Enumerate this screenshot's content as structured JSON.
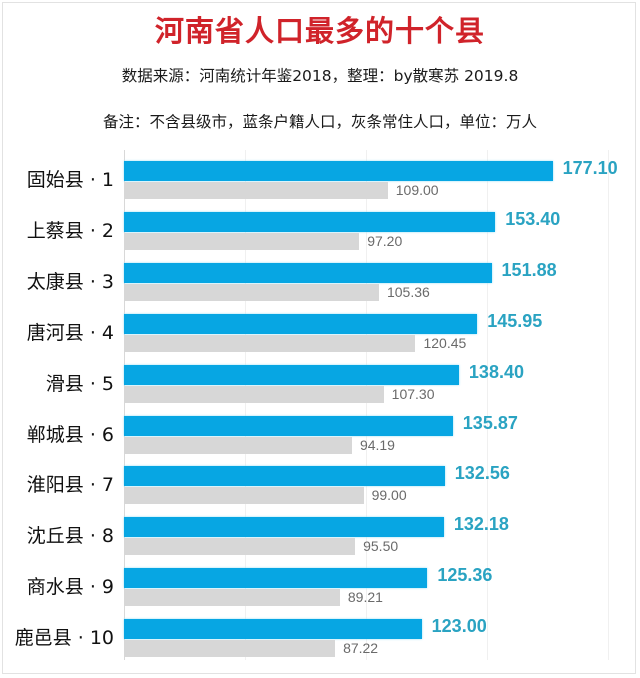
{
  "header": {
    "title": "河南省人口最多的十个县",
    "subtitle": "数据来源：河南统计年鉴2018，整理：by散寒苏  2019.8",
    "note": "备注：不含县级市，蓝条户籍人口，灰条常住人口，单位：万人"
  },
  "colors": {
    "title": "#d0232a",
    "blue_bar": "#07a6e3",
    "gray_bar": "#d7d7d7",
    "blue_label": "#2aa3c2",
    "gray_label": "#6a6a6a"
  },
  "chart_data": {
    "type": "bar",
    "orientation": "horizontal",
    "title": "河南省人口最多的十个县",
    "subtitle": "数据来源：河南统计年鉴2018，整理：by散寒苏  2019.8",
    "note": "备注：不含县级市，蓝条户籍人口，灰条常住人口，单位：万人",
    "xlabel": "",
    "ylabel": "",
    "unit": "万人",
    "xlim": [
      0,
      200
    ],
    "grid": true,
    "gridlines": [
      50,
      100,
      150,
      200
    ],
    "legend": "none (described in note)",
    "categories": [
      "固始县 · 1",
      "上蔡县 · 2",
      "太康县 · 3",
      "唐河县 · 4",
      "滑县 · 5",
      "郸城县 · 6",
      "淮阳县 · 7",
      "沈丘县 · 8",
      "商水县 · 9",
      "鹿邑县 · 10"
    ],
    "series": [
      {
        "name": "户籍人口",
        "color": "#07a6e3",
        "values": [
          177.1,
          153.4,
          151.88,
          145.95,
          138.4,
          135.87,
          132.56,
          132.18,
          125.36,
          123.0
        ],
        "labels": [
          "177.10",
          "153.40",
          "151.88",
          "145.95",
          "138.40",
          "135.87",
          "132.56",
          "132.18",
          "125.36",
          "123.00"
        ]
      },
      {
        "name": "常住人口",
        "color": "#d7d7d7",
        "values": [
          109.0,
          97.2,
          105.36,
          120.45,
          107.3,
          94.19,
          99.0,
          95.5,
          89.21,
          87.22
        ],
        "labels": [
          "109.00",
          "97.20",
          "105.36",
          "120.45",
          "107.30",
          "94.19",
          "99.00",
          "95.50",
          "89.21",
          "87.22"
        ]
      }
    ]
  }
}
